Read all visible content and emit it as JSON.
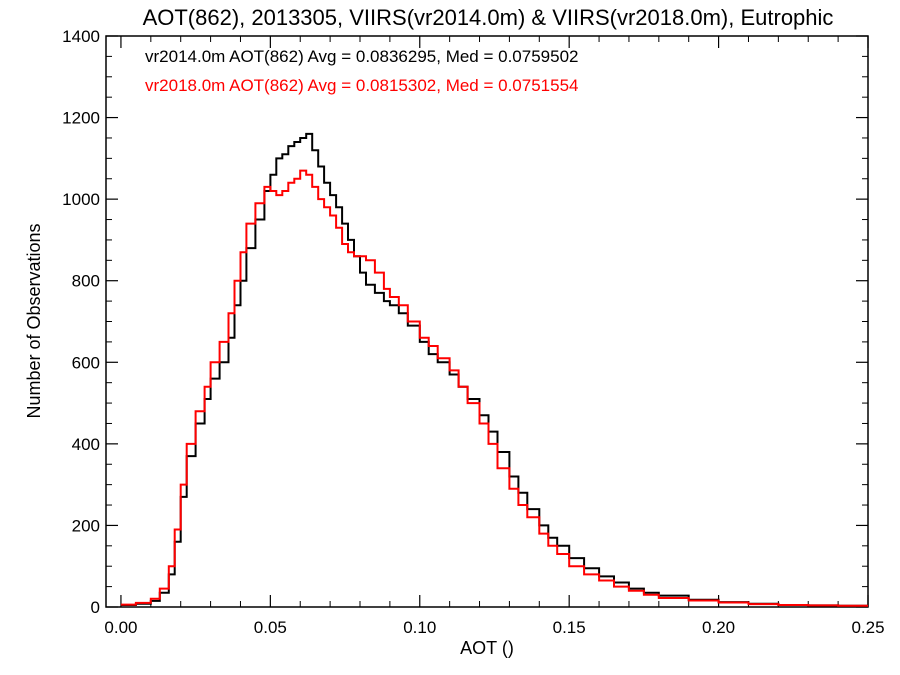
{
  "chart_data": {
    "type": "line",
    "title": "AOT(862), 2013305, VIIRS(vr2014.0m) & VIIRS(vr2018.0m), Eutrophic",
    "xlabel": "AOT ()",
    "ylabel": "Number of Observations",
    "xlim": [
      -0.005,
      0.25
    ],
    "ylim": [
      0,
      1400
    ],
    "x_ticks": [
      0.0,
      0.05,
      0.1,
      0.15,
      0.2,
      0.25
    ],
    "x_tick_labels": [
      "0.00",
      "0.05",
      "0.10",
      "0.15",
      "0.20",
      "0.25"
    ],
    "y_ticks": [
      0,
      200,
      400,
      600,
      800,
      1000,
      1200,
      1400
    ],
    "y_tick_labels": [
      "0",
      "200",
      "400",
      "600",
      "800",
      "1000",
      "1200",
      "1400"
    ],
    "grid": false,
    "legend_position": "top-left",
    "annotations": [
      {
        "text": "vr2014.0m AOT(862) Avg = 0.0836295, Med = 0.0759502",
        "color": "#000000"
      },
      {
        "text": "vr2018.0m AOT(862) Avg = 0.0815302, Med = 0.0751554",
        "color": "#ff0000"
      }
    ],
    "series": [
      {
        "color": "#000000",
        "x": [
          0.0,
          0.005,
          0.01,
          0.013,
          0.016,
          0.018,
          0.02,
          0.022,
          0.025,
          0.028,
          0.03,
          0.033,
          0.036,
          0.038,
          0.04,
          0.042,
          0.045,
          0.048,
          0.05,
          0.052,
          0.054,
          0.056,
          0.058,
          0.06,
          0.062,
          0.064,
          0.066,
          0.068,
          0.07,
          0.072,
          0.074,
          0.076,
          0.078,
          0.08,
          0.082,
          0.085,
          0.088,
          0.09,
          0.093,
          0.096,
          0.1,
          0.103,
          0.106,
          0.11,
          0.113,
          0.116,
          0.12,
          0.123,
          0.126,
          0.13,
          0.133,
          0.136,
          0.14,
          0.143,
          0.146,
          0.15,
          0.155,
          0.16,
          0.165,
          0.17,
          0.175,
          0.18,
          0.19,
          0.2,
          0.21,
          0.22,
          0.23,
          0.24,
          0.25
        ],
        "y": [
          5,
          8,
          15,
          35,
          80,
          160,
          270,
          370,
          450,
          510,
          560,
          600,
          660,
          740,
          800,
          880,
          950,
          1020,
          1060,
          1100,
          1110,
          1130,
          1140,
          1150,
          1160,
          1120,
          1080,
          1040,
          1010,
          980,
          940,
          900,
          860,
          820,
          790,
          770,
          750,
          740,
          720,
          690,
          650,
          620,
          600,
          570,
          540,
          510,
          470,
          430,
          380,
          320,
          280,
          240,
          200,
          170,
          150,
          120,
          95,
          75,
          60,
          45,
          35,
          28,
          18,
          12,
          8,
          5,
          4,
          3,
          3
        ]
      },
      {
        "color": "#ff0000",
        "x": [
          0.0,
          0.005,
          0.01,
          0.013,
          0.016,
          0.018,
          0.02,
          0.022,
          0.025,
          0.028,
          0.03,
          0.033,
          0.036,
          0.038,
          0.04,
          0.042,
          0.045,
          0.048,
          0.05,
          0.052,
          0.054,
          0.056,
          0.058,
          0.06,
          0.062,
          0.064,
          0.066,
          0.068,
          0.07,
          0.072,
          0.074,
          0.076,
          0.078,
          0.08,
          0.082,
          0.085,
          0.088,
          0.09,
          0.093,
          0.096,
          0.1,
          0.103,
          0.106,
          0.11,
          0.113,
          0.116,
          0.12,
          0.123,
          0.126,
          0.13,
          0.133,
          0.136,
          0.14,
          0.143,
          0.146,
          0.15,
          0.155,
          0.16,
          0.165,
          0.17,
          0.175,
          0.18,
          0.19,
          0.2,
          0.21,
          0.22,
          0.23,
          0.24,
          0.25
        ],
        "y": [
          6,
          10,
          20,
          45,
          100,
          190,
          300,
          400,
          480,
          540,
          600,
          650,
          720,
          800,
          870,
          940,
          990,
          1030,
          1020,
          1010,
          1020,
          1040,
          1050,
          1070,
          1060,
          1030,
          1000,
          980,
          960,
          930,
          890,
          870,
          860,
          860,
          850,
          820,
          780,
          760,
          740,
          700,
          660,
          640,
          610,
          580,
          540,
          500,
          450,
          400,
          340,
          290,
          250,
          220,
          180,
          150,
          130,
          100,
          80,
          65,
          50,
          40,
          30,
          22,
          16,
          11,
          7,
          5,
          4,
          3,
          3
        ]
      }
    ]
  }
}
